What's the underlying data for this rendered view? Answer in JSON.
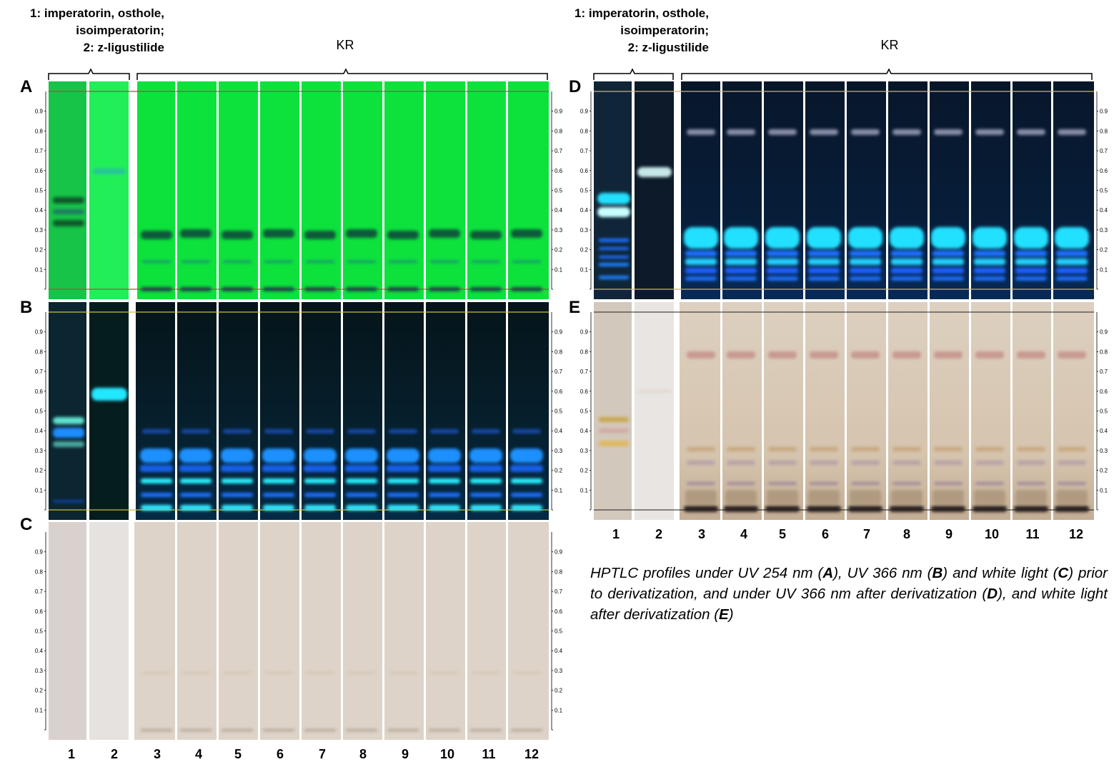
{
  "figure": {
    "header_left": "1: imperatorin, osthole,\nisoimperatorin;\n2: z-ligustilide",
    "header_right": "1: imperatorin, osthole,\nisoimperatorin;\n2: z-ligustilide",
    "group_label_left": "KR",
    "group_label_right": "KR",
    "panels": [
      {
        "letter": "A",
        "condition": "UV 254 nm",
        "colors": {
          "bg": "#0ee03a",
          "std1": "#19c544",
          "std2": "#22ef58",
          "sep": "#ffffff"
        }
      },
      {
        "letter": "B",
        "condition": "UV 366 nm",
        "colors": {
          "bg": "#051a24",
          "std1": "#0a2730",
          "std2": "#061d1e"
        }
      },
      {
        "letter": "C",
        "condition": "white light",
        "colors": {
          "bg": "#ddd3c8",
          "std1": "#d9d1cd",
          "std2": "#e6e2e0"
        }
      },
      {
        "letter": "D",
        "condition": "UV 366 nm after derivatization",
        "colors": {
          "bg": "#071a30"
        }
      },
      {
        "letter": "E",
        "condition": "white light after derivatization",
        "colors": {
          "bg": "#d6c6b2",
          "std1": "#d2c6ba",
          "std2": "#e9e5e2"
        }
      }
    ],
    "rf_ticks": [
      "0.1",
      "0.2",
      "0.3",
      "0.4",
      "0.5",
      "0.6",
      "0.7",
      "0.8",
      "0.9"
    ],
    "lane_numbers": [
      "1",
      "2",
      "3",
      "4",
      "5",
      "6",
      "7",
      "8",
      "9",
      "10",
      "11",
      "12"
    ],
    "caption": {
      "t1": "HPTLC profiles under UV 254 nm (",
      "A": "A",
      "t2": "), UV 366 nm (",
      "B": "B",
      "t3": ") and white light (",
      "C": "C",
      "t4": ") prior to derivatization, and under UV 366 nm after derivatization (",
      "D": "D",
      "t5": "), and white light after derivatization (",
      "E": "E",
      "t6": ")"
    }
  }
}
